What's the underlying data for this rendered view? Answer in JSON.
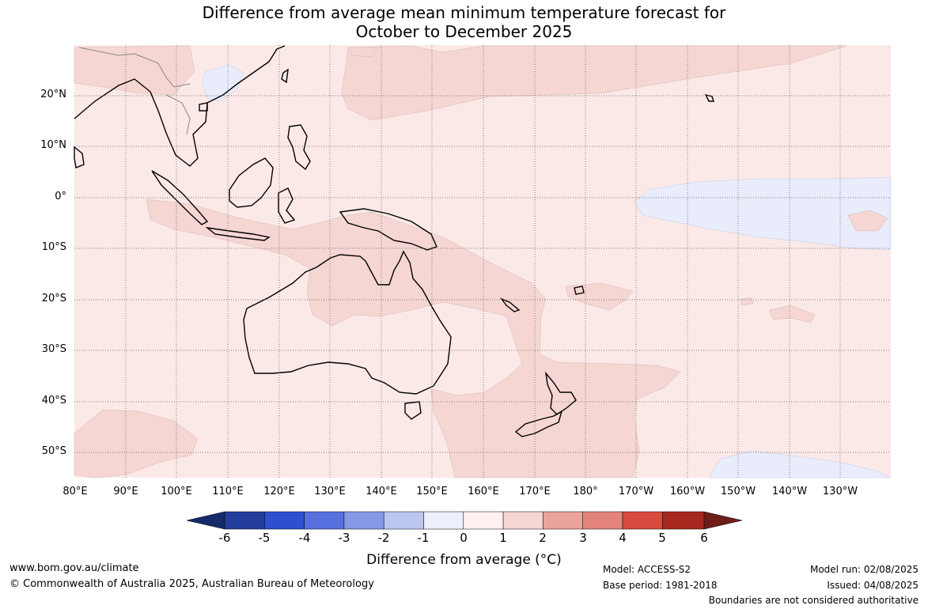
{
  "title": {
    "line1": "Difference from average mean minimum temperature forecast for",
    "line2": "October to December 2025"
  },
  "map": {
    "region": "Australia / Western Pacific",
    "lat_labels": [
      "20°N",
      "10°N",
      "0°",
      "10°S",
      "20°S",
      "30°S",
      "40°S",
      "50°S"
    ],
    "lon_labels": [
      "80°E",
      "90°E",
      "100°E",
      "110°E",
      "120°E",
      "130°E",
      "140°E",
      "150°E",
      "160°E",
      "170°E",
      "180°",
      "170°W",
      "160°W",
      "150°W",
      "140°W",
      "130°W"
    ],
    "colors": {
      "band_0_1": "#fbe9e7",
      "band_1_2": "#f5d6d3",
      "band_neg1_0": "#e8ecfb",
      "land_outline": "#000000"
    }
  },
  "colorbar": {
    "ticks": [
      "-6",
      "-5",
      "-4",
      "-3",
      "-2",
      "-1",
      "0",
      "1",
      "2",
      "3",
      "4",
      "5",
      "6"
    ],
    "colors": [
      "#233d9d",
      "#2e4fcf",
      "#5670df",
      "#8599e6",
      "#bcc6f1",
      "#eceffc",
      "#fdf0ee",
      "#f6d6d3",
      "#eba49c",
      "#e3837b",
      "#d84a3d",
      "#a82820"
    ],
    "extend_low_color": "#16296b",
    "extend_high_color": "#6e1d18",
    "label": "Difference from average (°C)"
  },
  "footer": {
    "website": "www.bom.gov.au/climate",
    "copyright": "© Commonwealth of Australia 2025, Australian Bureau of Meteorology",
    "model": "Model: ACCESS-S2",
    "base_period": "Base period: 1981-2018",
    "model_run": "Model run: 02/08/2025",
    "issued": "Issued: 04/08/2025",
    "disclaimer": "Boundaries are not considered authoritative"
  }
}
